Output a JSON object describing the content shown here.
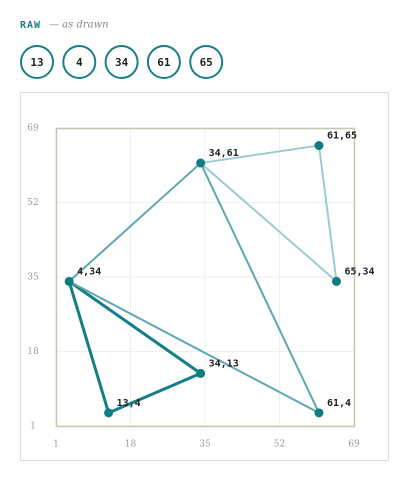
{
  "header": {
    "title": "RAW",
    "subtitle": "— as drawn"
  },
  "tokens": [
    13,
    4,
    34,
    61,
    65
  ],
  "chart_data": {
    "type": "graph",
    "points": [
      {
        "x": 13,
        "y": 4,
        "label": "13,4"
      },
      {
        "x": 4,
        "y": 34,
        "label": "4,34"
      },
      {
        "x": 34,
        "y": 13,
        "label": "34,13"
      },
      {
        "x": 34,
        "y": 61,
        "label": "34,61"
      },
      {
        "x": 61,
        "y": 65,
        "label": "61,65"
      },
      {
        "x": 65,
        "y": 34,
        "label": "65,34"
      },
      {
        "x": 61,
        "y": 4,
        "label": "61,4"
      }
    ],
    "edges": [
      {
        "from": 0,
        "to": 2,
        "color": "#137f86",
        "width": 3
      },
      {
        "from": 2,
        "to": 1,
        "color": "#137f86",
        "width": 3
      },
      {
        "from": 1,
        "to": 0,
        "color": "#137f86",
        "width": 3
      },
      {
        "from": 1,
        "to": 3,
        "color": "#5ea7ae",
        "width": 2
      },
      {
        "from": 1,
        "to": 6,
        "color": "#5ea7ae",
        "width": 2
      },
      {
        "from": 3,
        "to": 6,
        "color": "#5ea7ae",
        "width": 2
      },
      {
        "from": 3,
        "to": 4,
        "color": "#9ccbd0",
        "width": 2
      },
      {
        "from": 4,
        "to": 5,
        "color": "#9ccbd0",
        "width": 2
      },
      {
        "from": 5,
        "to": 3,
        "color": "#9ccbd0",
        "width": 2
      }
    ],
    "point_color": "#0e7c83",
    "xlim": [
      1,
      69
    ],
    "ylim": [
      1,
      69
    ],
    "xticks": [
      1,
      18,
      35,
      52,
      69
    ],
    "yticks": [
      1,
      18,
      35,
      52,
      69
    ],
    "grid": true
  }
}
